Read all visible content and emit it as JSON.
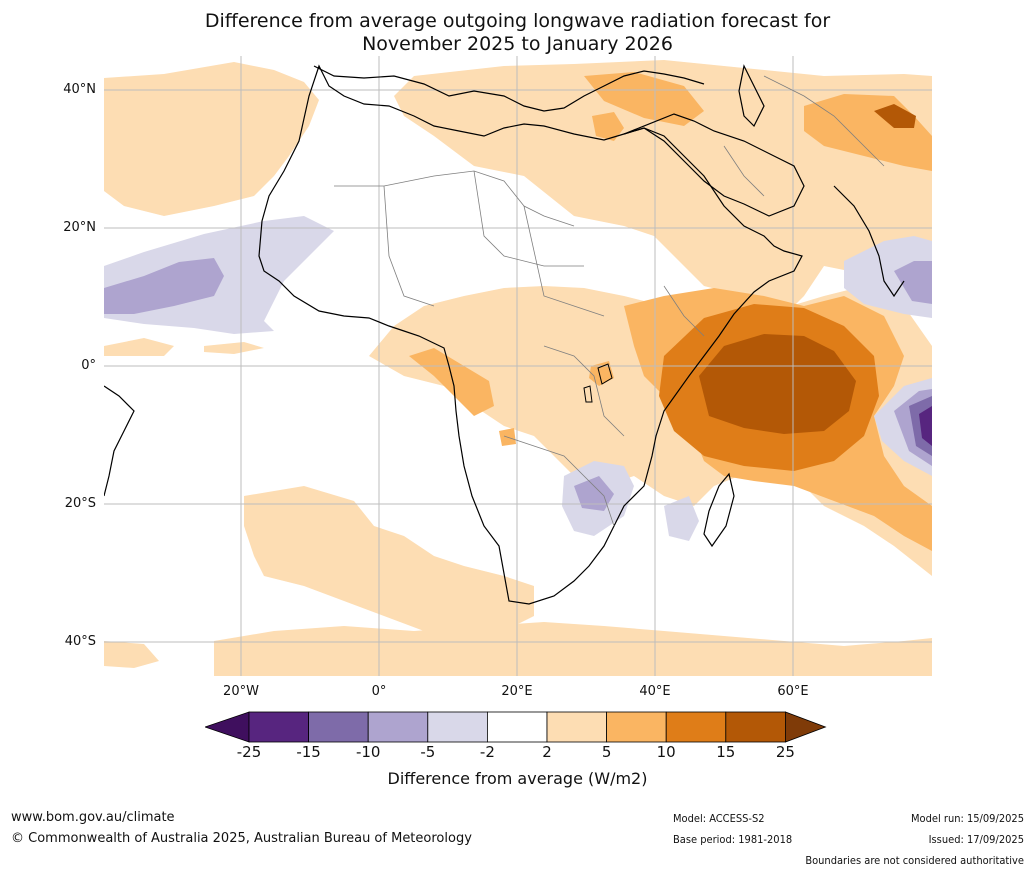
{
  "title_line1": "Difference from average outgoing longwave radiation forecast for",
  "title_line2": "November 2025 to January 2026",
  "lat_labels": [
    "40°N",
    "20°N",
    "0°",
    "20°S",
    "40°S"
  ],
  "lon_labels": [
    "20°W",
    "0°",
    "20°E",
    "40°E",
    "60°E"
  ],
  "colorbar": {
    "ticks": [
      "-25",
      "-15",
      "-10",
      "-5",
      "-2",
      "2",
      "5",
      "10",
      "15",
      "25"
    ],
    "colors": [
      "#3f0f5e",
      "#57257f",
      "#7e6ba9",
      "#aea4cf",
      "#d9d8e9",
      "#ffffff",
      "#fdddb3",
      "#fab562",
      "#df7d18",
      "#b35806",
      "#7f3b08"
    ],
    "title": "Difference from average (W/m2)"
  },
  "footer": {
    "url": "www.bom.gov.au/climate",
    "copyright": "© Commonwealth of Australia 2025, Australian Bureau of Meteorology",
    "model": "Model: ACCESS-S2",
    "base_period": "Base period: 1981-2018",
    "model_run": "Model run: 15/09/2025",
    "issued": "Issued: 17/09/2025",
    "disclaimer": "Boundaries are not considered authoritative"
  }
}
